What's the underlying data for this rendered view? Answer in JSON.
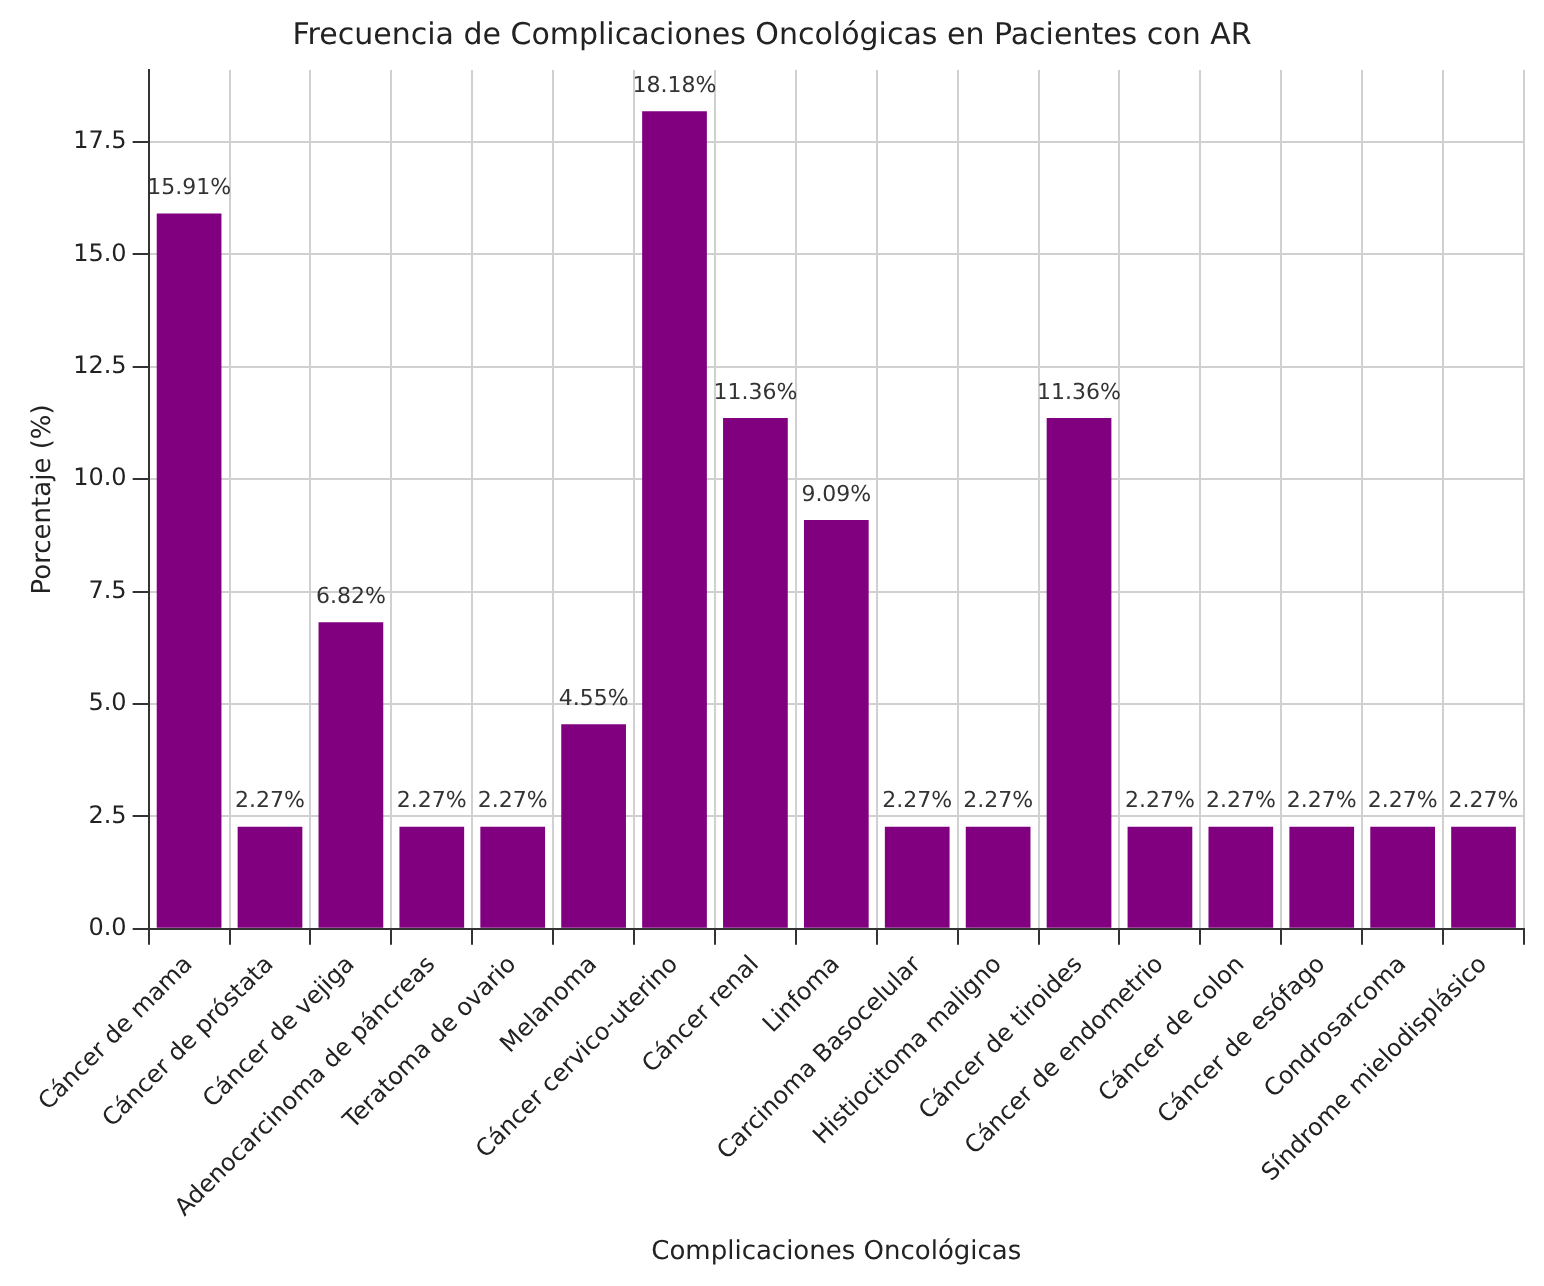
{
  "chart_data": {
    "type": "bar",
    "title": "Frecuencia de Complicaciones Oncológicas en Pacientes con AR",
    "xlabel": "Complicaciones Oncológicas",
    "ylabel": "Porcentaje (%)",
    "categories": [
      "Cáncer de mama",
      "Cáncer de próstata",
      "Cáncer de vejiga",
      "Adenocarcinoma de páncreas",
      "Teratoma de ovario",
      "Melanoma",
      "Cáncer cervico-uterino",
      "Cáncer renal",
      "Linfoma",
      "Carcinoma Basocelular",
      "Histiocitoma maligno",
      "Cáncer de tiroides",
      "Cáncer de endometrio",
      "Cáncer de colon",
      "Cáncer de esófago",
      "Condrosarcoma",
      "Síndrome mielodisplásico"
    ],
    "values": [
      15.91,
      2.27,
      6.82,
      2.27,
      2.27,
      4.55,
      18.18,
      11.36,
      9.09,
      2.27,
      2.27,
      11.36,
      2.27,
      2.27,
      2.27,
      2.27,
      2.27
    ],
    "value_labels": [
      "15.91%",
      "2.27%",
      "6.82%",
      "2.27%",
      "2.27%",
      "4.55%",
      "18.18%",
      "11.36%",
      "9.09%",
      "2.27%",
      "2.27%",
      "11.36%",
      "2.27%",
      "2.27%",
      "2.27%",
      "2.27%",
      "2.27%"
    ],
    "color": "#800080",
    "ylim": [
      0,
      19.1
    ],
    "yticks": [
      {
        "value": 0,
        "label": "0.0"
      },
      {
        "value": 2.5,
        "label": "2.5"
      },
      {
        "value": 5,
        "label": "5.0"
      },
      {
        "value": 7.5,
        "label": "7.5"
      },
      {
        "value": 10,
        "label": "10.0"
      },
      {
        "value": 12.5,
        "label": "12.5"
      },
      {
        "value": 15,
        "label": "15.0"
      },
      {
        "value": 17.5,
        "label": "17.5"
      }
    ],
    "grid": true
  }
}
